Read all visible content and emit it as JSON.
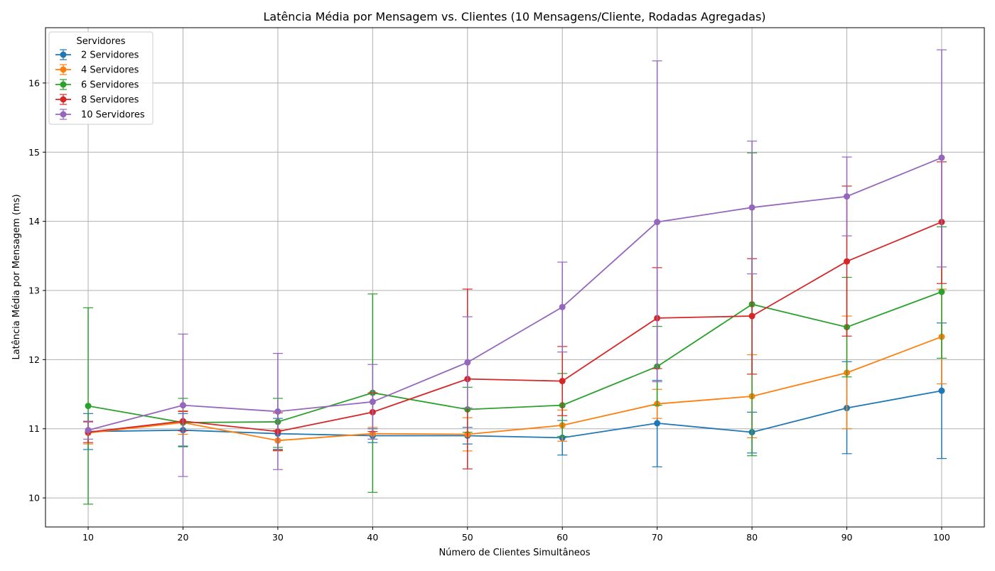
{
  "chart_data": {
    "type": "line",
    "title": "Latência Média por Mensagem vs. Clientes (10 Mensagens/Cliente, Rodadas Agregadas)",
    "xlabel": "Número de Clientes Simultâneos",
    "ylabel": "Latência Média por Mensagem (ms)",
    "xlim": [
      5.5,
      104.5
    ],
    "ylim": [
      9.58,
      16.8
    ],
    "xticks": [
      "10",
      "20",
      "30",
      "40",
      "50",
      "60",
      "70",
      "80",
      "90",
      "100"
    ],
    "yticks": [
      "10",
      "11",
      "12",
      "13",
      "14",
      "15",
      "16"
    ],
    "grid": true,
    "legend_title": "Servidores",
    "legend_position": "upper-left",
    "x": [
      10,
      20,
      30,
      40,
      50,
      60,
      70,
      80,
      90,
      100
    ],
    "series": [
      {
        "name": "2 Servidores",
        "color": "#1f77b4",
        "values": [
          10.96,
          10.98,
          10.93,
          10.9,
          10.9,
          10.87,
          11.08,
          10.95,
          11.3,
          11.55
        ],
        "err_low": [
          10.7,
          10.75,
          10.7,
          10.8,
          10.78,
          10.62,
          10.45,
          10.65,
          10.64,
          10.57
        ],
        "err_high": [
          11.22,
          11.22,
          11.15,
          11.0,
          11.02,
          11.12,
          11.7,
          11.24,
          11.97,
          12.53
        ]
      },
      {
        "name": "4 Servidores",
        "color": "#ff7f0e",
        "values": [
          10.94,
          11.09,
          10.83,
          10.93,
          10.92,
          11.05,
          11.36,
          11.47,
          11.81,
          12.33
        ],
        "err_low": [
          10.78,
          10.92,
          10.68,
          10.85,
          10.68,
          10.82,
          11.15,
          10.87,
          11.0,
          11.65
        ],
        "err_high": [
          11.1,
          11.26,
          10.98,
          11.02,
          11.16,
          11.27,
          11.57,
          12.07,
          12.63,
          13.02
        ]
      },
      {
        "name": "6 Servidores",
        "color": "#2ca02c",
        "values": [
          11.33,
          11.09,
          11.1,
          11.52,
          11.28,
          11.34,
          11.9,
          12.8,
          12.47,
          12.98
        ],
        "err_low": [
          9.91,
          10.74,
          10.73,
          10.08,
          10.95,
          10.89,
          11.34,
          10.61,
          11.75,
          12.02
        ],
        "err_high": [
          12.75,
          11.44,
          11.44,
          12.95,
          11.6,
          11.8,
          12.48,
          14.99,
          13.19,
          13.92
        ]
      },
      {
        "name": "8 Servidores",
        "color": "#d62728",
        "values": [
          10.95,
          11.11,
          10.96,
          11.24,
          11.72,
          11.69,
          12.6,
          12.63,
          13.42,
          13.99
        ],
        "err_low": [
          10.8,
          10.97,
          10.69,
          10.96,
          10.42,
          11.19,
          11.87,
          11.79,
          12.34,
          13.1
        ],
        "err_high": [
          11.1,
          11.25,
          11.23,
          11.52,
          13.02,
          12.19,
          13.33,
          13.46,
          14.51,
          14.86
        ]
      },
      {
        "name": "10 Servidores",
        "color": "#9467bd",
        "values": [
          10.98,
          11.34,
          11.25,
          11.39,
          11.96,
          12.76,
          13.99,
          14.2,
          14.36,
          14.92
        ],
        "err_low": [
          10.85,
          10.31,
          10.41,
          10.85,
          11.3,
          12.11,
          11.68,
          13.24,
          13.79,
          13.34
        ],
        "err_high": [
          11.11,
          12.37,
          12.09,
          11.93,
          12.62,
          13.41,
          16.32,
          15.16,
          14.93,
          16.48
        ]
      }
    ]
  }
}
